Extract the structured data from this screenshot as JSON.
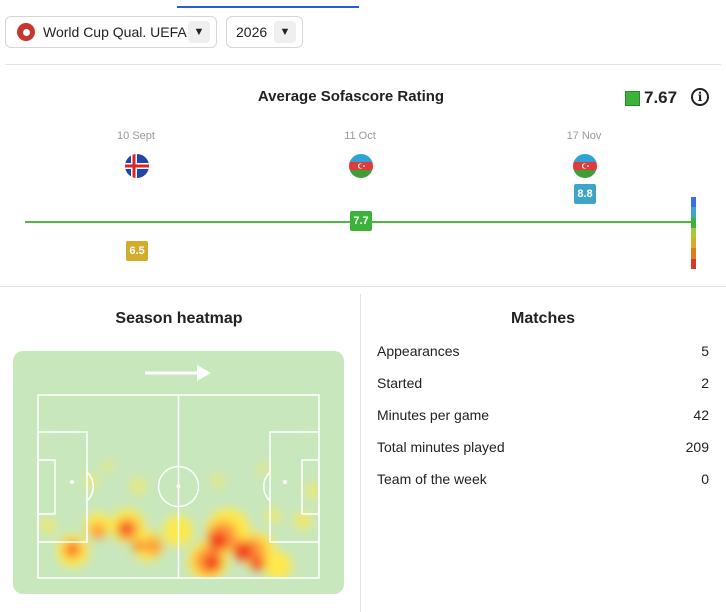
{
  "filters": {
    "competition": "World Cup Qual. UEFA",
    "season": "2026"
  },
  "rating_chart": {
    "title": "Average Sofascore Rating",
    "average": "7.67",
    "average_color": "#3bb33b",
    "info_icon": "info-icon",
    "matches": [
      {
        "date": "10 Sept",
        "opponent_flag": "iceland-flag",
        "rating": "6.5",
        "rating_value": 6.5,
        "badge_color": "#d4ac2b"
      },
      {
        "date": "11 Oct",
        "opponent_flag": "azerbaijan-flag",
        "rating": "7.7",
        "rating_value": 7.7,
        "badge_color": "#3bb33b"
      },
      {
        "date": "17 Nov",
        "opponent_flag": "azerbaijan-flag",
        "rating": "8.8",
        "rating_value": 8.8,
        "badge_color": "#3ea4c8"
      }
    ],
    "scale_colors": [
      "#3b6ee0",
      "#3ea4c8",
      "#3bb33b",
      "#a6c93a",
      "#d4ac2b",
      "#e07a1f",
      "#d63a2a"
    ]
  },
  "heatmap": {
    "title": "Season heatmap",
    "direction_icon": "arrow-right-icon",
    "pitch_color": "#c9e7bd"
  },
  "matches": {
    "title": "Matches",
    "stats": [
      {
        "label": "Appearances",
        "value": "5"
      },
      {
        "label": "Started",
        "value": "2"
      },
      {
        "label": "Minutes per game",
        "value": "42"
      },
      {
        "label": "Total minutes played",
        "value": "209"
      },
      {
        "label": "Team of the week",
        "value": "0"
      }
    ]
  }
}
